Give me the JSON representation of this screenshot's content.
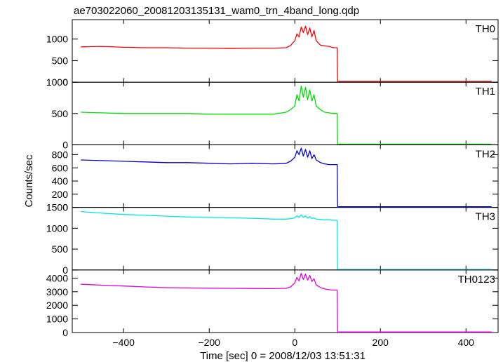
{
  "chart_data": {
    "type": "line",
    "title": "ae703022060_20081203135131_wam0_trn_4band_long.qdp",
    "xlabel": "Time [sec] 0 = 2008/12/03 13:51:31",
    "ylabel": "Counts/sec",
    "xlim": [
      -520,
      475
    ],
    "xticks": [
      -400,
      -200,
      0,
      200,
      400
    ],
    "x_tick_labels": [
      "−400",
      "−200",
      "0",
      "200",
      "400"
    ],
    "series": [
      {
        "name": "TH0",
        "color": "#ff0000",
        "ylim": [
          0,
          1450
        ],
        "yticks": [
          0,
          500,
          1000
        ],
        "ytick_labels": [
          "0",
          "500",
          "1000"
        ],
        "x": [
          -500,
          -450,
          -400,
          -350,
          -300,
          -250,
          -200,
          -150,
          -100,
          -50,
          -20,
          -10,
          0,
          5,
          10,
          15,
          20,
          25,
          30,
          35,
          40,
          45,
          50,
          60,
          70,
          80,
          90,
          99,
          100,
          150,
          200,
          250,
          300,
          350,
          400,
          450,
          460
        ],
        "y": [
          820,
          830,
          810,
          800,
          800,
          790,
          790,
          780,
          790,
          790,
          800,
          850,
          960,
          1120,
          1050,
          1280,
          1150,
          1300,
          1100,
          1260,
          1050,
          1200,
          960,
          860,
          840,
          830,
          800,
          800,
          20,
          20,
          20,
          20,
          20,
          20,
          20,
          20,
          20
        ]
      },
      {
        "name": "TH1",
        "color": "#00dd00",
        "ylim": [
          0,
          1000
        ],
        "yticks": [
          0,
          500,
          1000
        ],
        "ytick_labels": [
          "0",
          "500",
          "1000"
        ],
        "x": [
          -500,
          -450,
          -400,
          -350,
          -300,
          -250,
          -200,
          -150,
          -100,
          -50,
          -20,
          -10,
          0,
          5,
          10,
          15,
          20,
          25,
          30,
          35,
          40,
          45,
          50,
          60,
          70,
          80,
          90,
          99,
          100,
          150,
          200,
          250,
          300,
          350,
          400,
          450,
          460
        ],
        "y": [
          520,
          510,
          500,
          500,
          500,
          500,
          490,
          490,
          490,
          490,
          520,
          560,
          620,
          800,
          700,
          940,
          760,
          920,
          720,
          880,
          700,
          800,
          620,
          560,
          520,
          510,
          500,
          500,
          10,
          10,
          10,
          10,
          10,
          10,
          10,
          10,
          10
        ]
      },
      {
        "name": "TH2",
        "color": "#0000dd",
        "ylim": [
          0,
          950
        ],
        "yticks": [
          0,
          200,
          400,
          600,
          800
        ],
        "ytick_labels": [
          "0",
          "200",
          "400",
          "600",
          "800"
        ],
        "x": [
          -500,
          -450,
          -400,
          -350,
          -300,
          -250,
          -200,
          -150,
          -100,
          -50,
          -20,
          -10,
          0,
          5,
          10,
          15,
          20,
          25,
          30,
          35,
          40,
          45,
          50,
          60,
          70,
          80,
          90,
          99,
          100,
          150,
          200,
          250,
          300,
          350,
          400,
          450,
          460
        ],
        "y": [
          720,
          710,
          700,
          690,
          680,
          680,
          670,
          660,
          670,
          660,
          670,
          700,
          760,
          860,
          800,
          900,
          780,
          880,
          760,
          860,
          740,
          800,
          720,
          680,
          660,
          650,
          650,
          650,
          10,
          10,
          10,
          10,
          10,
          10,
          10,
          10,
          10
        ]
      },
      {
        "name": "TH3",
        "color": "#00e5e5",
        "ylim": [
          0,
          1500
        ],
        "yticks": [
          0,
          500,
          1000,
          1500
        ],
        "ytick_labels": [
          "0",
          "500",
          "1000",
          "1500"
        ],
        "x": [
          -500,
          -450,
          -400,
          -350,
          -300,
          -250,
          -200,
          -150,
          -100,
          -50,
          -20,
          -10,
          0,
          5,
          10,
          15,
          20,
          25,
          30,
          35,
          40,
          45,
          50,
          60,
          70,
          80,
          90,
          99,
          100,
          150,
          200,
          250,
          300,
          350,
          400,
          450,
          460
        ],
        "y": [
          1400,
          1360,
          1330,
          1310,
          1290,
          1270,
          1260,
          1250,
          1240,
          1220,
          1220,
          1230,
          1250,
          1300,
          1260,
          1320,
          1260,
          1300,
          1240,
          1280,
          1230,
          1250,
          1220,
          1210,
          1200,
          1200,
          1190,
          1190,
          10,
          10,
          10,
          10,
          10,
          10,
          10,
          10,
          10
        ]
      },
      {
        "name": "TH0123",
        "color": "#e000e0",
        "ylim": [
          0,
          4600
        ],
        "yticks": [
          0,
          1000,
          2000,
          3000,
          4000
        ],
        "ytick_labels": [
          "0",
          "1000",
          "2000",
          "3000",
          "4000"
        ],
        "x": [
          -500,
          -450,
          -400,
          -350,
          -300,
          -250,
          -200,
          -150,
          -100,
          -50,
          -20,
          -10,
          0,
          5,
          10,
          15,
          20,
          25,
          30,
          35,
          40,
          45,
          50,
          60,
          70,
          80,
          90,
          99,
          100,
          150,
          200,
          250,
          300,
          350,
          400,
          450,
          460
        ],
        "y": [
          3550,
          3480,
          3420,
          3350,
          3300,
          3280,
          3260,
          3250,
          3240,
          3230,
          3250,
          3350,
          3650,
          4050,
          3800,
          4350,
          3900,
          4300,
          3850,
          4200,
          3750,
          3950,
          3500,
          3300,
          3200,
          3150,
          3120,
          3120,
          40,
          40,
          40,
          40,
          40,
          40,
          40,
          40,
          40
        ]
      }
    ],
    "grid": false,
    "legend": "none"
  }
}
